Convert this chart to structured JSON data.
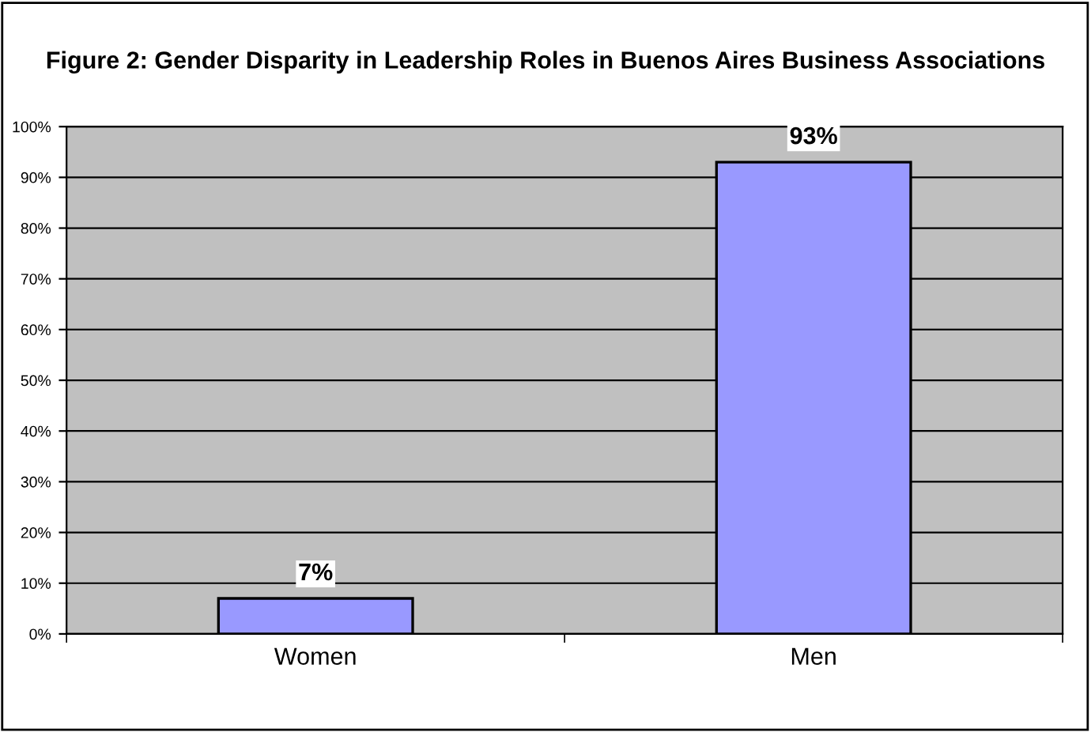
{
  "chart_data": {
    "type": "bar",
    "title": "Figure 2: Gender Disparity in Leadership Roles in Buenos Aires Business Associations",
    "categories": [
      "Women",
      "Men"
    ],
    "values": [
      7,
      93
    ],
    "value_labels": [
      "7%",
      "93%"
    ],
    "color": "#9999ff",
    "ylim": [
      0,
      100
    ],
    "yticks": [
      {
        "value": 0,
        "label": "0%"
      },
      {
        "value": 10,
        "label": "10%"
      },
      {
        "value": 20,
        "label": "20%"
      },
      {
        "value": 30,
        "label": "30%"
      },
      {
        "value": 40,
        "label": "40%"
      },
      {
        "value": 50,
        "label": "50%"
      },
      {
        "value": 60,
        "label": "60%"
      },
      {
        "value": 70,
        "label": "70%"
      },
      {
        "value": 80,
        "label": "80%"
      },
      {
        "value": 90,
        "label": "90%"
      },
      {
        "value": 100,
        "label": "100%"
      }
    ],
    "grid": "y",
    "legend": false
  }
}
